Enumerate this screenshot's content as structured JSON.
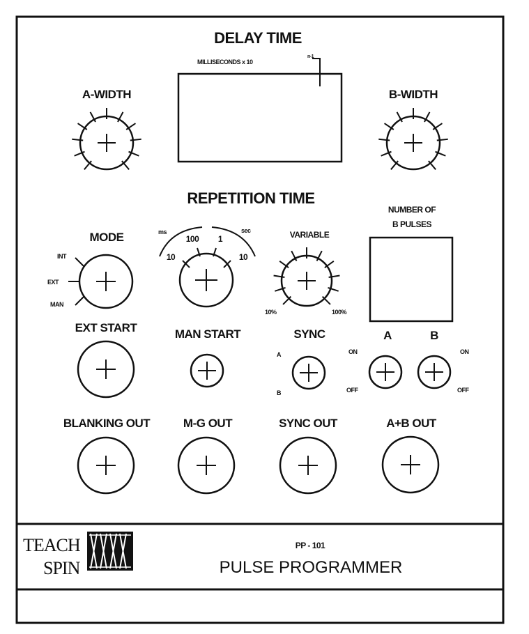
{
  "delay": {
    "title": "DELAY TIME",
    "subtitle": "MILLISECONDS x 10",
    "exponent": "n-1"
  },
  "a_width": {
    "label": "A-WIDTH"
  },
  "b_width": {
    "label": "B-WIDTH"
  },
  "repetition": {
    "title": "REPETITION TIME"
  },
  "number_b": {
    "line1": "NUMBER OF",
    "line2": "B PULSES"
  },
  "mode": {
    "label": "MODE",
    "options": [
      "INT",
      "EXT",
      "MAN"
    ]
  },
  "range": {
    "unit_ms": "ms",
    "unit_sec": "sec",
    "steps": [
      "10",
      "100",
      "1",
      "10"
    ]
  },
  "variable": {
    "label": "VARIABLE",
    "min": "10%",
    "max": "100%"
  },
  "ext_start": {
    "label": "EXT START"
  },
  "man_start": {
    "label": "MAN START"
  },
  "sync": {
    "label": "SYNC",
    "top": "A",
    "bottom": "B"
  },
  "ab_switch": {
    "label_a": "A",
    "label_b": "B",
    "on": "ON",
    "off": "OFF"
  },
  "outputs": {
    "blanking": "BLANKING OUT",
    "mg": "M-G OUT",
    "sync": "SYNC OUT",
    "apb": "A+B OUT"
  },
  "footer": {
    "brand_top": "TEACH",
    "brand_bottom": "SPIN",
    "model": "PP - 101",
    "name": "PULSE PROGRAMMER"
  }
}
